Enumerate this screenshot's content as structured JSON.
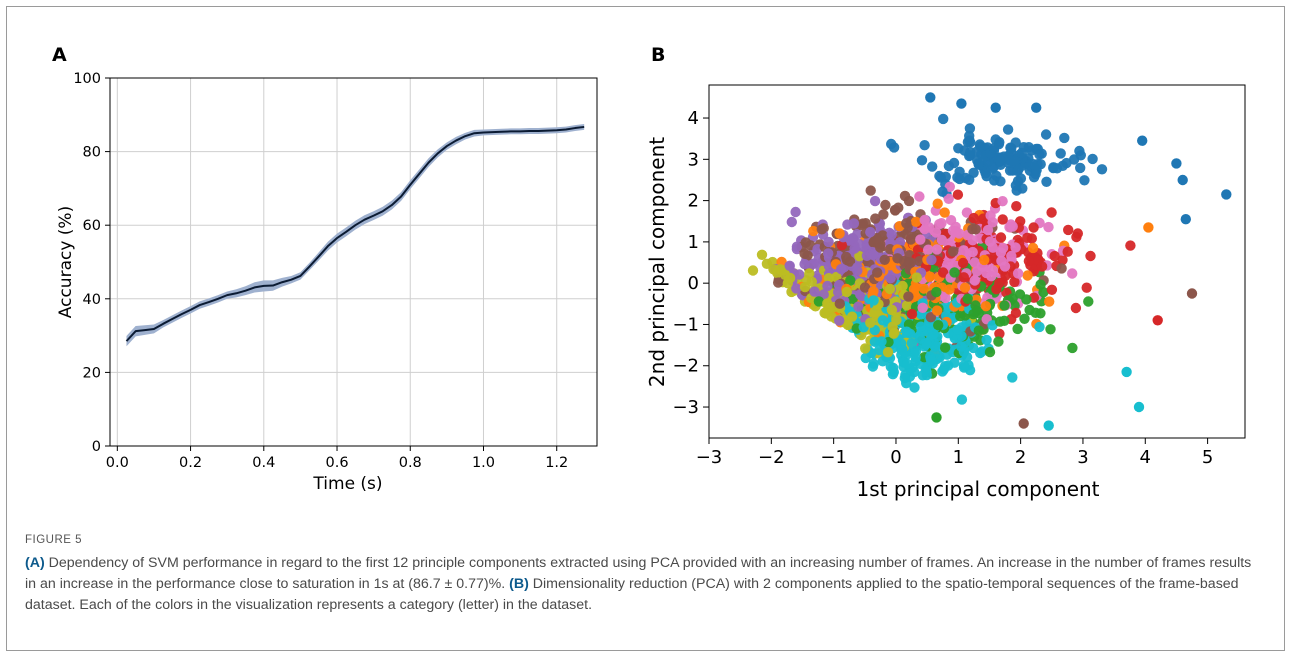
{
  "figure_label": "FIGURE 5",
  "caption": {
    "a_tag": "(A)",
    "a_text": " Dependency of SVM performance in regard to the first 12 principle components extracted using PCA provided with an increasing number of frames. An increase in the number of frames results in an increase in the performance close to saturation in 1s at (86.7 ± 0.77)%. ",
    "b_tag": "(B)",
    "b_text": " Dimensionality reduction (PCA) with 2 components applied to the spatio-temporal sequences of the frame-based dataset. Each of the colors in the visualization represents a category (letter) in the dataset."
  },
  "chart_data": [
    {
      "panel": "A",
      "type": "line",
      "xlabel": "Time (s)",
      "ylabel": "Accuracy (%)",
      "xlim": [
        -0.02,
        1.31
      ],
      "ylim": [
        0,
        100
      ],
      "xticks": [
        0.0,
        0.2,
        0.4,
        0.6,
        0.8,
        1.0,
        1.2
      ],
      "xtick_labels": [
        "0.0",
        "0.2",
        "0.4",
        "0.6",
        "0.8",
        "1.0",
        "1.2"
      ],
      "yticks": [
        0,
        20,
        40,
        60,
        80,
        100
      ],
      "ytick_labels": [
        "0",
        "20",
        "40",
        "60",
        "80",
        "100"
      ],
      "grid": true,
      "line_color": "#0b1b33",
      "band_color": "#9fb1cf",
      "series": [
        {
          "x": [
            0.025,
            0.05,
            0.075,
            0.1,
            0.125,
            0.15,
            0.175,
            0.2,
            0.225,
            0.25,
            0.275,
            0.3,
            0.325,
            0.35,
            0.375,
            0.4,
            0.425,
            0.45,
            0.475,
            0.5,
            0.525,
            0.55,
            0.575,
            0.6,
            0.625,
            0.65,
            0.675,
            0.7,
            0.725,
            0.75,
            0.775,
            0.8,
            0.825,
            0.85,
            0.875,
            0.9,
            0.925,
            0.95,
            0.975,
            1.0,
            1.025,
            1.05,
            1.075,
            1.1,
            1.125,
            1.15,
            1.175,
            1.2,
            1.225,
            1.25,
            1.275
          ],
          "values": [
            28.5,
            31.2,
            31.5,
            31.8,
            33.2,
            34.5,
            35.8,
            37.0,
            38.3,
            39.1,
            40.0,
            41.0,
            41.5,
            42.2,
            43.1,
            43.5,
            43.6,
            44.5,
            45.2,
            46.2,
            48.8,
            51.5,
            54.3,
            56.5,
            58.2,
            60.0,
            61.5,
            62.6,
            63.8,
            65.5,
            67.8,
            71.0,
            74.0,
            77.0,
            79.5,
            81.5,
            83.0,
            84.2,
            85.0,
            85.2,
            85.3,
            85.4,
            85.5,
            85.5,
            85.6,
            85.6,
            85.7,
            85.8,
            86.0,
            86.4,
            86.7
          ],
          "band": [
            1.4,
            1.4,
            1.3,
            1.2,
            1.0,
            1.0,
            1.0,
            1.0,
            1.0,
            1.0,
            1.0,
            1.0,
            1.1,
            1.2,
            1.4,
            1.5,
            1.4,
            1.2,
            1.0,
            1.0,
            1.0,
            1.1,
            1.2,
            1.2,
            1.2,
            1.2,
            1.2,
            1.2,
            1.2,
            1.2,
            1.2,
            1.2,
            1.2,
            1.2,
            1.1,
            1.0,
            1.0,
            0.9,
            0.9,
            0.8,
            0.8,
            0.8,
            0.8,
            0.8,
            0.8,
            0.8,
            0.8,
            0.8,
            0.8,
            0.8,
            0.8
          ]
        }
      ]
    },
    {
      "panel": "B",
      "type": "scatter",
      "xlabel": "1st principal component",
      "ylabel": "2nd principal component",
      "xlim": [
        -3.0,
        5.6
      ],
      "ylim": [
        -3.75,
        4.8
      ],
      "xticks": [
        -3,
        -2,
        -1,
        0,
        1,
        2,
        3,
        4,
        5
      ],
      "xtick_labels": [
        "−3",
        "−2",
        "−1",
        "0",
        "1",
        "2",
        "3",
        "4",
        "5"
      ],
      "yticks": [
        -3,
        -2,
        -1,
        0,
        1,
        2,
        3,
        4
      ],
      "ytick_labels": [
        "−3",
        "−2",
        "−1",
        "0",
        "1",
        "2",
        "3",
        "4"
      ],
      "grid": false,
      "clusters": [
        {
          "color": "#ff7f0e",
          "cx": 0.2,
          "cy": 0.1,
          "sx": 1.3,
          "sy": 1.0,
          "n": 170
        },
        {
          "color": "#2ca02c",
          "cx": 0.8,
          "cy": -0.5,
          "sx": 1.3,
          "sy": 0.9,
          "n": 150
        },
        {
          "color": "#d62728",
          "cx": 1.4,
          "cy": 0.6,
          "sx": 1.2,
          "sy": 0.9,
          "n": 160
        },
        {
          "color": "#9467bd",
          "cx": -0.6,
          "cy": 0.4,
          "sx": 1.1,
          "sy": 1.0,
          "n": 220
        },
        {
          "color": "#8c564b",
          "cx": 0.0,
          "cy": 0.5,
          "sx": 1.2,
          "sy": 1.0,
          "n": 240
        },
        {
          "color": "#bcbd22",
          "cx": -0.6,
          "cy": -0.6,
          "sx": 1.0,
          "sy": 0.8,
          "n": 180
        },
        {
          "color": "#17becf",
          "cx": 0.4,
          "cy": -1.4,
          "sx": 0.9,
          "sy": 0.8,
          "n": 250
        },
        {
          "color": "#1f77b4",
          "cx": 1.7,
          "cy": 3.0,
          "sx": 1.0,
          "sy": 0.55,
          "n": 130
        },
        {
          "color": "#e377c2",
          "cx": 1.1,
          "cy": 0.6,
          "sx": 0.9,
          "sy": 0.9,
          "n": 200
        }
      ],
      "outlier_points": [
        {
          "x": 0.55,
          "y": 4.5,
          "color": "#1f77b4"
        },
        {
          "x": 1.05,
          "y": 4.35,
          "color": "#1f77b4"
        },
        {
          "x": 1.6,
          "y": 4.25,
          "color": "#1f77b4"
        },
        {
          "x": 2.25,
          "y": 4.25,
          "color": "#1f77b4"
        },
        {
          "x": 5.3,
          "y": 2.15,
          "color": "#1f77b4"
        },
        {
          "x": 4.6,
          "y": 2.5,
          "color": "#1f77b4"
        },
        {
          "x": 4.65,
          "y": 1.55,
          "color": "#1f77b4"
        },
        {
          "x": 3.95,
          "y": 3.45,
          "color": "#1f77b4"
        },
        {
          "x": 4.5,
          "y": 2.9,
          "color": "#1f77b4"
        },
        {
          "x": 4.75,
          "y": -0.25,
          "color": "#8c564b"
        },
        {
          "x": 3.9,
          "y": -3.0,
          "color": "#17becf"
        },
        {
          "x": 2.45,
          "y": -3.45,
          "color": "#17becf"
        },
        {
          "x": 3.7,
          "y": -2.15,
          "color": "#17becf"
        },
        {
          "x": 0.65,
          "y": -3.25,
          "color": "#2ca02c"
        },
        {
          "x": 2.05,
          "y": -3.4,
          "color": "#8c564b"
        },
        {
          "x": 4.2,
          "y": -0.9,
          "color": "#d62728"
        },
        {
          "x": 4.05,
          "y": 1.35,
          "color": "#ff7f0e"
        }
      ]
    }
  ]
}
